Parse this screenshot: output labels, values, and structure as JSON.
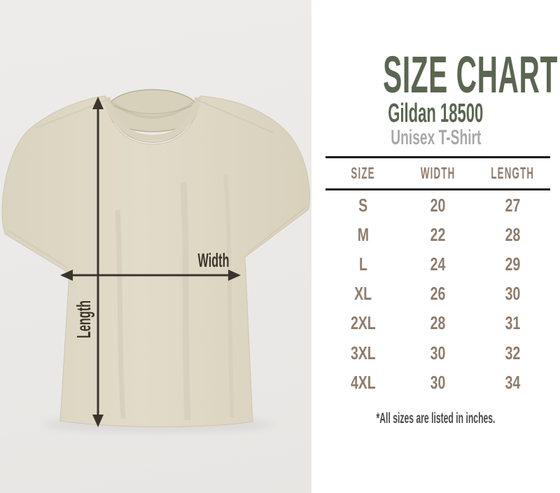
{
  "header": {
    "title": "SIZE CHART",
    "product": "Gildan 18500",
    "subtitle": "Unisex T-Shirt"
  },
  "diagram": {
    "width_label": "Width",
    "length_label": "Length"
  },
  "size_chart": {
    "columns": [
      "SIZE",
      "WIDTH",
      "LENGTH"
    ],
    "rows": [
      [
        "S",
        "20",
        "27"
      ],
      [
        "M",
        "22",
        "28"
      ],
      [
        "L",
        "24",
        "29"
      ],
      [
        "XL",
        "26",
        "30"
      ],
      [
        "2XL",
        "28",
        "31"
      ],
      [
        "3XL",
        "30",
        "32"
      ],
      [
        "4XL",
        "30",
        "34"
      ]
    ]
  },
  "footnote": "*All sizes are listed in inches.",
  "chart_data": {
    "type": "table",
    "title": "SIZE CHART",
    "subtitle": "Gildan 18500 Unisex T-Shirt",
    "columns": [
      "SIZE",
      "WIDTH",
      "LENGTH"
    ],
    "rows": [
      [
        "S",
        20,
        27
      ],
      [
        "M",
        22,
        28
      ],
      [
        "L",
        24,
        29
      ],
      [
        "XL",
        26,
        30
      ],
      [
        "2XL",
        28,
        31
      ],
      [
        "3XL",
        30,
        32
      ],
      [
        "4XL",
        30,
        34
      ]
    ],
    "units": "inches",
    "notes": "Measurement diagram on garment photo shows Width (chest, horizontal) and Length (shoulder to hem, vertical)"
  },
  "colors": {
    "title_green": "#5a6650",
    "subtitle_gray": "#a8a8a8",
    "table_text": "#8f7c6c",
    "rule": "#161616",
    "footnote": "#4a4a4a",
    "arrow": "#3a352c",
    "shirt": "#ded8c5",
    "photo_bg": "#ebe9e7"
  }
}
